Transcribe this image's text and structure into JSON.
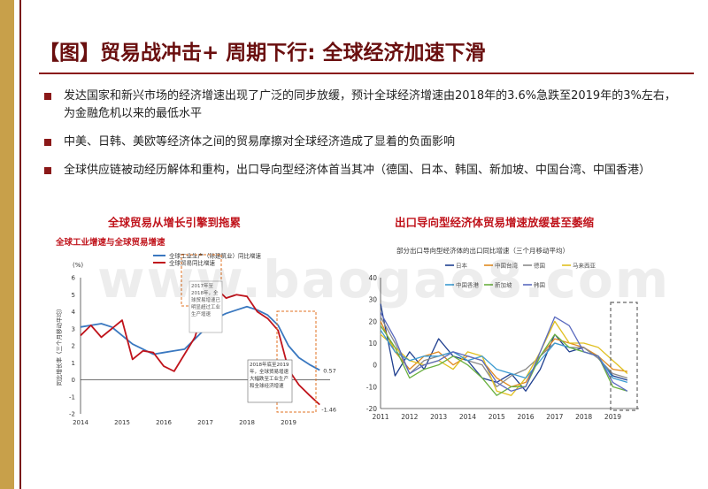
{
  "slide": {
    "title": "【图】贸易战冲击+ 周期下行: 全球经济加速下滑",
    "bullets": [
      "发达国家和新兴市场的经济增速出现了广泛的同步放缓，预计全球经济增速由2018年的3.6%急跌至2019年的3%左右，为金融危机以来的最低水平",
      "中美、日韩、美欧等经济体之间的贸易摩擦对全球经济造成了显着的负面影响",
      "全球供应链被动经历解体和重构，出口导向型经济体首当其冲（德国、日本、韩国、新加坡、中国台湾、中国香港）"
    ],
    "watermark": "www.baogao8.com",
    "colors": {
      "accent": "#8a1818",
      "left_bar": "#c8a04a",
      "caption": "#c0141c"
    }
  },
  "chart_data": [
    {
      "type": "line",
      "caption": "全球贸易从增长引擎到拖累",
      "title": "全球工业增速与全球贸易增速",
      "ylabel": "同比增长率（三个月移动平均）",
      "unit": "(%)",
      "x": [
        2014.0,
        2014.25,
        2014.5,
        2014.75,
        2015.0,
        2015.25,
        2015.5,
        2015.75,
        2016.0,
        2016.25,
        2016.5,
        2016.75,
        2017.0,
        2017.25,
        2017.5,
        2017.75,
        2018.0,
        2018.25,
        2018.5,
        2018.75,
        2019.0,
        2019.25,
        2019.5,
        2019.75
      ],
      "xticks": [
        "2014",
        "2015",
        "2016",
        "2017",
        "2018",
        "2019"
      ],
      "ylim": [
        -2,
        6
      ],
      "yticks": [
        -2,
        -1,
        0,
        1,
        2,
        3,
        4,
        5,
        6
      ],
      "series": [
        {
          "name": "全球工业生产（除建筑业）同比增速",
          "color": "#3a78c0",
          "values": [
            3.1,
            3.2,
            3.3,
            3.1,
            2.6,
            2.1,
            1.8,
            1.5,
            1.6,
            1.7,
            1.8,
            2.4,
            3.0,
            3.6,
            3.9,
            4.1,
            4.3,
            4.1,
            3.8,
            3.2,
            2.0,
            1.3,
            0.9,
            0.57
          ]
        },
        {
          "name": "全球贸易同比增速",
          "color": "#c0141c",
          "values": [
            2.6,
            3.2,
            2.5,
            3.0,
            3.5,
            1.2,
            1.7,
            1.6,
            0.8,
            0.5,
            1.5,
            2.5,
            4.5,
            5.4,
            4.8,
            5.0,
            4.9,
            4.0,
            3.6,
            2.9,
            0.6,
            -0.3,
            -0.9,
            -1.46
          ]
        }
      ],
      "annotations": [
        {
          "text": "2017年至2018年，全球贸易增速已明显超过工业生产增速",
          "box": "dashed"
        },
        {
          "text": "2018年底至2019年，全球贸易增速大幅跌至工业生产和全球经济增速",
          "box": "solid"
        }
      ],
      "data_labels": [
        "0.57",
        "-1.46"
      ]
    },
    {
      "type": "line",
      "caption": "出口导向型经济体贸易增速放缓甚至萎缩",
      "title": "部分出口导向型经济体的出口同比增速（三个月移动平均）",
      "x": [
        2011,
        2011.5,
        2012,
        2012.5,
        2013,
        2013.5,
        2014,
        2014.5,
        2015,
        2015.5,
        2016,
        2016.5,
        2017,
        2017.5,
        2018,
        2018.5,
        2019,
        2019.5
      ],
      "xticks": [
        "2011",
        "2012",
        "2013",
        "2014",
        "2015",
        "2016",
        "2017",
        "2018",
        "2019"
      ],
      "ylim": [
        -20,
        40
      ],
      "yticks": [
        -20,
        -10,
        0,
        10,
        20,
        30,
        40
      ],
      "series": [
        {
          "name": "日本",
          "color": "#1f3f8f",
          "values": [
            28,
            -5,
            6,
            -2,
            12,
            4,
            2,
            -6,
            -8,
            -4,
            -12,
            -2,
            14,
            6,
            8,
            3,
            -5,
            -7
          ]
        },
        {
          "name": "中国台湾",
          "color": "#e08a20",
          "values": [
            20,
            6,
            -2,
            4,
            6,
            0,
            4,
            2,
            -6,
            -10,
            -8,
            4,
            12,
            10,
            8,
            4,
            -2,
            -3
          ]
        },
        {
          "name": "德国",
          "color": "#8a8a8a",
          "values": [
            22,
            10,
            -4,
            2,
            4,
            6,
            2,
            0,
            -10,
            -5,
            -2,
            4,
            10,
            8,
            8,
            3,
            -4,
            -6
          ]
        },
        {
          "name": "马来西亚",
          "color": "#e0c020",
          "values": [
            14,
            8,
            2,
            0,
            2,
            -2,
            6,
            4,
            -12,
            -14,
            -6,
            6,
            20,
            10,
            10,
            8,
            2,
            -4
          ]
        },
        {
          "name": "中国香港",
          "color": "#3a9ad0",
          "values": [
            16,
            6,
            2,
            4,
            4,
            6,
            2,
            4,
            -2,
            -4,
            -6,
            2,
            10,
            8,
            6,
            4,
            -6,
            -8
          ]
        },
        {
          "name": "新加坡",
          "color": "#6ab040",
          "values": [
            18,
            8,
            -6,
            -2,
            0,
            4,
            0,
            -6,
            -14,
            -10,
            -10,
            4,
            14,
            8,
            6,
            4,
            -10,
            -12
          ]
        },
        {
          "name": "韩国",
          "color": "#5a6abf",
          "values": [
            24,
            12,
            -4,
            0,
            2,
            6,
            4,
            2,
            -8,
            -12,
            -10,
            6,
            22,
            18,
            6,
            4,
            -8,
            -12
          ]
        }
      ]
    }
  ]
}
